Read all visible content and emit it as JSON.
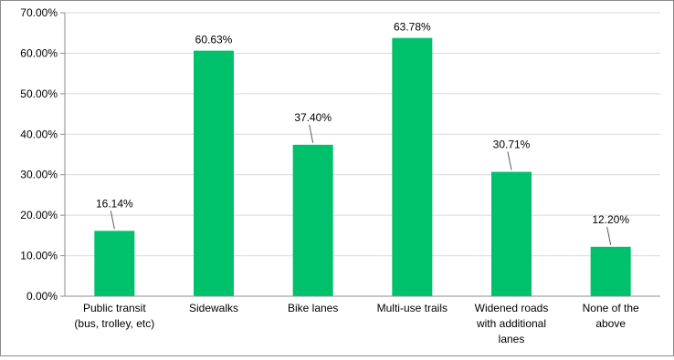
{
  "chart_data": {
    "type": "bar",
    "title": "",
    "xlabel": "",
    "ylabel": "",
    "categories": [
      [
        "Public transit",
        "(bus, trolley, etc)"
      ],
      [
        "Sidewalks"
      ],
      [
        "Bike lanes"
      ],
      [
        "Multi-use trails"
      ],
      [
        "Widened roads",
        "with additional",
        "lanes"
      ],
      [
        "None of the",
        "above"
      ]
    ],
    "values": [
      16.14,
      60.63,
      37.4,
      63.78,
      30.71,
      12.2
    ],
    "data_labels": [
      "16.14%",
      "60.63%",
      "37.40%",
      "63.78%",
      "30.71%",
      "12.20%"
    ],
    "ylim": [
      0,
      70
    ],
    "yticks": [
      "0.00%",
      "10.00%",
      "20.00%",
      "30.00%",
      "40.00%",
      "50.00%",
      "60.00%",
      "70.00%"
    ],
    "grid": true,
    "legend": "none",
    "colors": {
      "bar": "#00c16b",
      "grid": "#d9d9d9",
      "axis": "#8c8c8c",
      "leader": "#595959"
    }
  }
}
